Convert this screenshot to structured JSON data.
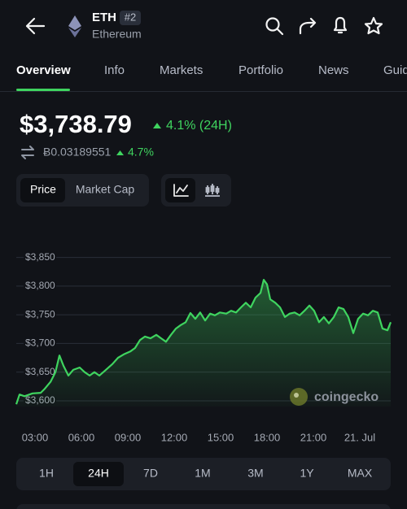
{
  "header": {
    "symbol": "ETH",
    "rank": "#2",
    "name": "Ethereum"
  },
  "tabs": [
    "Overview",
    "Info",
    "Markets",
    "Portfolio",
    "News",
    "Guid"
  ],
  "price": {
    "value": "$3,738.79",
    "change": "4.1% (24H)",
    "btc": "Ƀ0.03189551",
    "btc_change": "4.7%"
  },
  "chart_toggle": [
    "Price",
    "Market Cap"
  ],
  "chart_data": {
    "type": "line",
    "color": "#3fd45f",
    "x": [
      1.79,
      2.0,
      2.32,
      2.84,
      3.37,
      3.63,
      4.0,
      4.32,
      4.58,
      4.84,
      5.16,
      5.47,
      5.89,
      6.21,
      6.53,
      6.84,
      7.16,
      7.58,
      8.0,
      8.37,
      8.74,
      9.16,
      9.47,
      9.79,
      10.11,
      10.47,
      10.84,
      11.16,
      11.47,
      11.79,
      12.11,
      12.42,
      12.74,
      13.05,
      13.37,
      13.68,
      14.0,
      14.32,
      14.63,
      14.95,
      15.37,
      15.68,
      16.0,
      16.32,
      16.63,
      16.95,
      17.26,
      17.58,
      17.79,
      18.0,
      18.21,
      18.53,
      18.84,
      19.16,
      19.47,
      19.79,
      20.11,
      20.42,
      20.74,
      21.05,
      21.37,
      21.68,
      22.0,
      22.32,
      22.63,
      22.95,
      23.26,
      23.58,
      23.89,
      24.21,
      24.53,
      24.84,
      25.16,
      25.47,
      25.79,
      26.0
    ],
    "values": [
      3594,
      3611,
      3608,
      3613,
      3614,
      3621,
      3633,
      3650,
      3679,
      3661,
      3644,
      3654,
      3658,
      3650,
      3644,
      3650,
      3644,
      3654,
      3664,
      3675,
      3681,
      3686,
      3692,
      3706,
      3712,
      3709,
      3715,
      3709,
      3703,
      3715,
      3726,
      3732,
      3737,
      3753,
      3743,
      3754,
      3740,
      3752,
      3749,
      3754,
      3752,
      3757,
      3754,
      3763,
      3771,
      3763,
      3780,
      3788,
      3811,
      3803,
      3777,
      3771,
      3763,
      3746,
      3752,
      3754,
      3749,
      3757,
      3766,
      3757,
      3737,
      3746,
      3735,
      3746,
      3763,
      3760,
      3746,
      3718,
      3743,
      3752,
      3749,
      3757,
      3754,
      3726,
      3723,
      3737
    ],
    "xlim": [
      1.79,
      26.0
    ],
    "xticks": [
      {
        "value": 3,
        "label": "03:00"
      },
      {
        "value": 6,
        "label": "06:00"
      },
      {
        "value": 9,
        "label": "09:00"
      },
      {
        "value": 12,
        "label": "12:00"
      },
      {
        "value": 15,
        "label": "15:00"
      },
      {
        "value": 18,
        "label": "18:00"
      },
      {
        "value": 21,
        "label": "21:00"
      },
      {
        "value": 24,
        "label": "21. Jul"
      }
    ],
    "ylim": [
      3590,
      3865
    ],
    "yticks": [
      {
        "value": 3600,
        "label": "$3,600"
      },
      {
        "value": 3650,
        "label": "$3,650"
      },
      {
        "value": 3700,
        "label": "$3,700"
      },
      {
        "value": 3750,
        "label": "$3,750"
      },
      {
        "value": 3800,
        "label": "$3,800"
      },
      {
        "value": 3850,
        "label": "$3,850"
      }
    ],
    "grid": true
  },
  "watermark": "coingecko",
  "ranges": [
    "1H",
    "24H",
    "7D",
    "1M",
    "3M",
    "1Y",
    "MAX"
  ]
}
